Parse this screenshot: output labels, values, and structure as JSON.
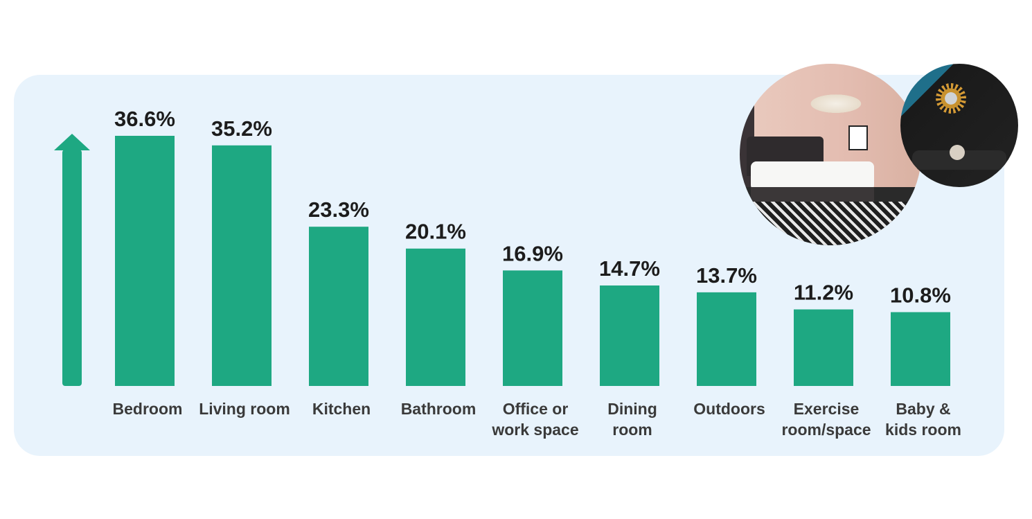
{
  "chart_data": {
    "type": "bar",
    "categories": [
      [
        "Bedroom"
      ],
      [
        "Living room"
      ],
      [
        "Kitchen"
      ],
      [
        "Bathroom"
      ],
      [
        "Office or",
        "work space"
      ],
      [
        "Dining",
        "room"
      ],
      [
        "Outdoors"
      ],
      [
        "Exercise",
        "room/space"
      ],
      [
        "Baby &",
        "kids room"
      ]
    ],
    "values": [
      36.6,
      35.2,
      23.3,
      20.1,
      16.9,
      14.7,
      13.7,
      11.2,
      10.8
    ],
    "value_labels": [
      "36.6%",
      "35.2%",
      "23.3%",
      "20.1%",
      "16.9%",
      "14.7%",
      "13.7%",
      "11.2%",
      "10.8%"
    ],
    "unit": "%",
    "ylim": [
      0,
      36.6
    ],
    "grid": false,
    "legend": "none",
    "bar_color": "#1ea882",
    "arrow_color": "#1ea882",
    "panel_color": "#e8f3fc"
  },
  "photos": [
    {
      "name": "bedroom-photo"
    },
    {
      "name": "living-room-photo"
    }
  ]
}
